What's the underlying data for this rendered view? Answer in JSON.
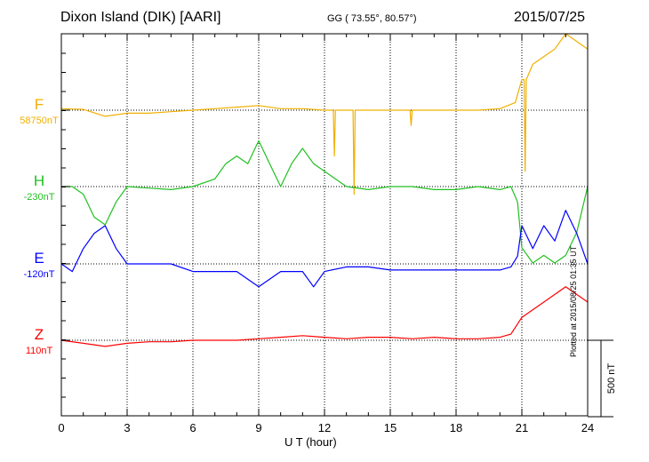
{
  "header": {
    "station": "Dixon Island (DIK)  [AARI]",
    "coords": "GG ( 73.55°,  80.57°)",
    "date": "2015/07/25"
  },
  "components": [
    {
      "letter": "F",
      "base": "58750nT",
      "color": "#f0b000"
    },
    {
      "letter": "H",
      "base": "-230nT",
      "color": "#20c020"
    },
    {
      "letter": "E",
      "base": "-120nT",
      "color": "#0000ff"
    },
    {
      "letter": "Z",
      "base": "110nT",
      "color": "#ff0000"
    }
  ],
  "scale_label": "500 nT",
  "xlabel": "U T (hour)",
  "plotted_note": "Plotted at 2015/08/25 01:35 UT",
  "chart_data": {
    "type": "line",
    "xlabel": "U T (hour)",
    "xlim": [
      0,
      24
    ],
    "x_ticks": [
      "0",
      "3",
      "6",
      "9",
      "12",
      "15",
      "18",
      "21",
      "24"
    ],
    "grid": true,
    "scale_bar_nT": 500,
    "series": [
      {
        "name": "F",
        "baseline_nT": 58750,
        "color": "#f0b000",
        "x": [
          0,
          1,
          2,
          3,
          4,
          5,
          6,
          7,
          8,
          9,
          10,
          11,
          12,
          12.4,
          12.45,
          12.5,
          13,
          13.3,
          13.35,
          13.4,
          14,
          15,
          15.9,
          15.95,
          16,
          17,
          18,
          19,
          20,
          20.7,
          21,
          21.1,
          21.15,
          21.2,
          21.5,
          22,
          22.5,
          23,
          23.5,
          24
        ],
        "y": [
          10,
          5,
          -40,
          -20,
          -20,
          -10,
          0,
          10,
          20,
          30,
          10,
          10,
          0,
          0,
          -300,
          0,
          0,
          0,
          -550,
          0,
          0,
          0,
          0,
          -100,
          0,
          0,
          0,
          0,
          10,
          50,
          200,
          200,
          -400,
          200,
          300,
          350,
          400,
          500,
          450,
          400
        ]
      },
      {
        "name": "H",
        "baseline_nT": -230,
        "color": "#20c020",
        "x": [
          0,
          0.5,
          1,
          1.5,
          2,
          2.5,
          3,
          4,
          5,
          6,
          7,
          7.5,
          8,
          8.5,
          9,
          9.5,
          10,
          10.5,
          11,
          11.5,
          12,
          12.5,
          13,
          14,
          15,
          16,
          17,
          18,
          19,
          20,
          20.5,
          20.8,
          21,
          21.5,
          22,
          22.5,
          23,
          23.5,
          24
        ],
        "y": [
          0,
          0,
          -50,
          -200,
          -250,
          -100,
          0,
          -10,
          -20,
          0,
          50,
          150,
          200,
          150,
          300,
          150,
          0,
          150,
          250,
          150,
          100,
          50,
          0,
          -20,
          0,
          0,
          -20,
          -20,
          0,
          -20,
          0,
          -100,
          -400,
          -500,
          -450,
          -500,
          -450,
          -300,
          0
        ]
      },
      {
        "name": "E",
        "baseline_nT": -120,
        "color": "#0000ff",
        "x": [
          0,
          0.5,
          1,
          1.5,
          2,
          2.5,
          3,
          4,
          5,
          6,
          7,
          8,
          9,
          10,
          11,
          11.5,
          12,
          13,
          14,
          15,
          16,
          17,
          18,
          19,
          20,
          20.5,
          20.8,
          21,
          21.5,
          22,
          22.5,
          23,
          23.5,
          24
        ],
        "y": [
          0,
          -50,
          100,
          200,
          250,
          100,
          0,
          0,
          0,
          -50,
          -50,
          -50,
          -150,
          -50,
          -50,
          -150,
          -50,
          -20,
          -20,
          -40,
          -40,
          -40,
          -40,
          -40,
          -40,
          -20,
          50,
          250,
          100,
          250,
          150,
          350,
          200,
          0
        ]
      },
      {
        "name": "Z",
        "baseline_nT": 110,
        "color": "#ff0000",
        "x": [
          0,
          1,
          2,
          3,
          4,
          5,
          6,
          7,
          8,
          9,
          10,
          11,
          12,
          13,
          14,
          15,
          16,
          17,
          18,
          19,
          20,
          20.5,
          21,
          21.5,
          22,
          22.5,
          23,
          23.5,
          24
        ],
        "y": [
          0,
          -20,
          -40,
          -20,
          -10,
          -10,
          0,
          0,
          0,
          10,
          20,
          30,
          20,
          10,
          20,
          20,
          10,
          20,
          10,
          10,
          20,
          40,
          150,
          200,
          250,
          300,
          350,
          300,
          250
        ]
      }
    ]
  }
}
